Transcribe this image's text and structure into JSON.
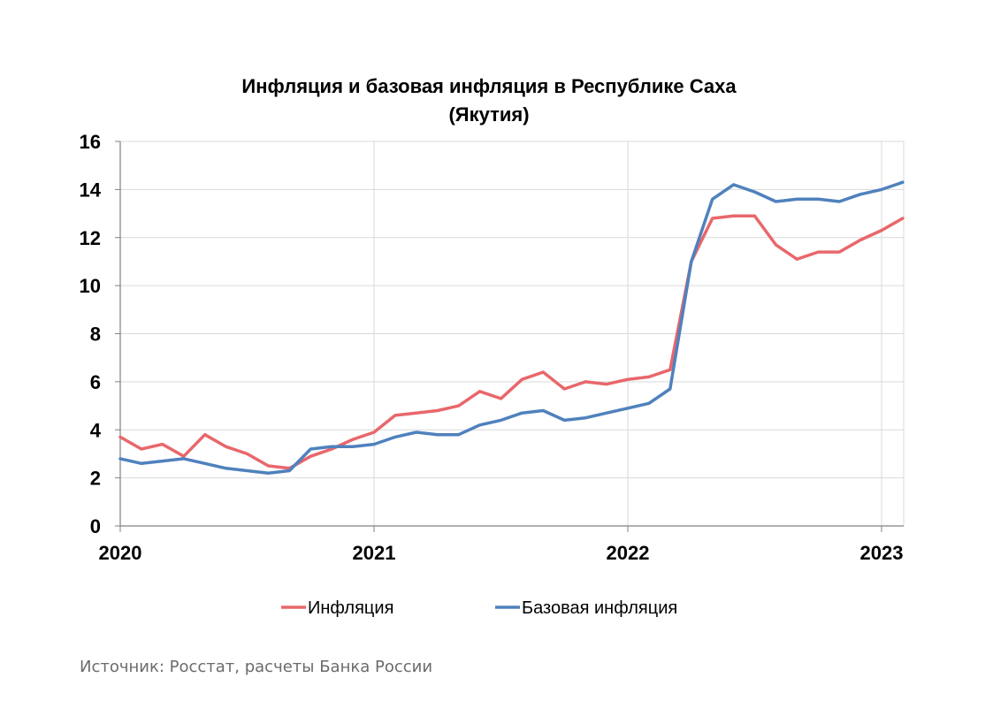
{
  "chart_data": {
    "type": "line",
    "title_line1": "Инфляция и базовая инфляция в Республике Саха",
    "title_line2": "(Якутия)",
    "xlabel": "",
    "ylabel": "",
    "ylim": [
      0,
      16
    ],
    "y_ticks": [
      "0",
      "2",
      "4",
      "6",
      "8",
      "10",
      "12",
      "14",
      "16"
    ],
    "x_ticks": [
      "2020",
      "2021",
      "2022",
      "2023"
    ],
    "grid": true,
    "legend_position": "bottom",
    "x": [
      "2020-01",
      "2020-02",
      "2020-03",
      "2020-04",
      "2020-05",
      "2020-06",
      "2020-07",
      "2020-08",
      "2020-09",
      "2020-10",
      "2020-11",
      "2020-12",
      "2021-01",
      "2021-02",
      "2021-03",
      "2021-04",
      "2021-05",
      "2021-06",
      "2021-07",
      "2021-08",
      "2021-09",
      "2021-10",
      "2021-11",
      "2021-12",
      "2022-01",
      "2022-02",
      "2022-03",
      "2022-04",
      "2022-05",
      "2022-06",
      "2022-07",
      "2022-08",
      "2022-09",
      "2022-10",
      "2022-11",
      "2022-12",
      "2023-01",
      "2023-02"
    ],
    "series": [
      {
        "name": "Инфляция",
        "color": "#e8676b",
        "values": [
          3.7,
          3.2,
          3.4,
          2.9,
          3.8,
          3.3,
          3.0,
          2.5,
          2.4,
          2.9,
          3.2,
          3.6,
          3.9,
          4.6,
          4.7,
          4.8,
          5.0,
          5.6,
          5.3,
          6.1,
          6.4,
          5.7,
          6.0,
          5.9,
          6.1,
          6.2,
          6.5,
          11.0,
          12.8,
          12.9,
          12.9,
          11.7,
          11.1,
          11.4,
          11.4,
          11.9,
          12.3,
          12.8
        ]
      },
      {
        "name": "Базовая инфляция",
        "color": "#4f81bd",
        "values": [
          2.8,
          2.6,
          2.7,
          2.8,
          2.6,
          2.4,
          2.3,
          2.2,
          2.3,
          3.2,
          3.3,
          3.3,
          3.4,
          3.7,
          3.9,
          3.8,
          3.8,
          4.2,
          4.4,
          4.7,
          4.8,
          4.4,
          4.5,
          4.7,
          4.9,
          5.1,
          5.7,
          11.0,
          13.6,
          14.2,
          13.9,
          13.5,
          13.6,
          13.6,
          13.5,
          13.8,
          14.0,
          14.3
        ]
      }
    ]
  },
  "source_text": "Источник: Росстат, расчеты Банка России"
}
